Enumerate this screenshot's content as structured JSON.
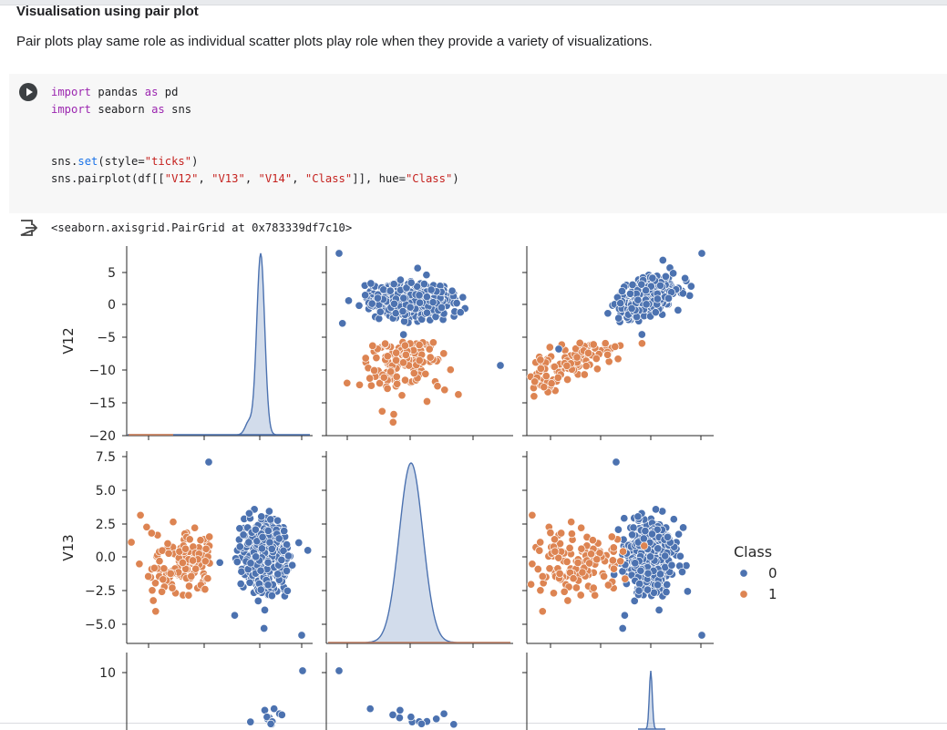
{
  "section": {
    "heading": "Visualisation using pair plot",
    "paragraph": "Pair plots play same role as individual scatter plots play role when they provide a variety of visualizations."
  },
  "code_cell": {
    "lines": [
      {
        "parts": [
          {
            "t": "import",
            "c": "kw"
          },
          {
            "t": " pandas ",
            "c": ""
          },
          {
            "t": "as",
            "c": "kw"
          },
          {
            "t": " pd",
            "c": ""
          }
        ]
      },
      {
        "parts": [
          {
            "t": "import",
            "c": "kw"
          },
          {
            "t": " seaborn ",
            "c": ""
          },
          {
            "t": "as",
            "c": "kw"
          },
          {
            "t": " sns",
            "c": ""
          }
        ]
      },
      {
        "parts": []
      },
      {
        "parts": []
      },
      {
        "parts": [
          {
            "t": "sns.",
            "c": ""
          },
          {
            "t": "set",
            "c": "fn"
          },
          {
            "t": "(style=",
            "c": ""
          },
          {
            "t": "\"ticks\"",
            "c": "str"
          },
          {
            "t": ")",
            "c": ""
          }
        ]
      },
      {
        "parts": [
          {
            "t": "sns.pairplot(df[[",
            "c": ""
          },
          {
            "t": "\"V12\"",
            "c": "str"
          },
          {
            "t": ", ",
            "c": ""
          },
          {
            "t": "\"V13\"",
            "c": "str"
          },
          {
            "t": ", ",
            "c": ""
          },
          {
            "t": "\"V14\"",
            "c": "str"
          },
          {
            "t": ", ",
            "c": ""
          },
          {
            "t": "\"Class\"",
            "c": "str"
          },
          {
            "t": "]], hue=",
            "c": ""
          },
          {
            "t": "\"Class\"",
            "c": "str"
          },
          {
            "t": ")",
            "c": ""
          }
        ]
      }
    ],
    "run_icon": "play-icon"
  },
  "output": {
    "icon": "output-redirect-icon",
    "text": "<seaborn.axisgrid.PairGrid at 0x783339df7c10>"
  },
  "chart_data": {
    "type": "scatter",
    "subtype": "pairplot",
    "variables": [
      "V12",
      "V13",
      "V14"
    ],
    "hue": "Class",
    "colors": {
      "0": "#4c72b0",
      "1": "#dd8452"
    },
    "legend": {
      "title": "Class",
      "entries": [
        "0",
        "1"
      ],
      "placement": "right"
    },
    "row_labels": [
      "V12",
      "V13",
      ""
    ],
    "axes": {
      "V12": {
        "ylim": [
          -20,
          8.3
        ],
        "ticks": [
          5,
          0,
          -5,
          -10,
          -15,
          -20
        ],
        "tick_labels": [
          "5",
          "0",
          "−5",
          "−10",
          "−15",
          "−20"
        ]
      },
      "V13": {
        "ylim": [
          -6.2,
          8.0
        ],
        "ticks": [
          7.5,
          5.0,
          2.5,
          0.0,
          -2.5,
          -5.0
        ],
        "tick_labels": [
          "7.5",
          "5.0",
          "2.5",
          "0.0",
          "−2.5",
          "−5.0"
        ]
      },
      "V14": {
        "visible_ticks": [
          10
        ],
        "tick_labels": [
          "10"
        ]
      }
    },
    "diagonal": "kde",
    "grid": false
  }
}
